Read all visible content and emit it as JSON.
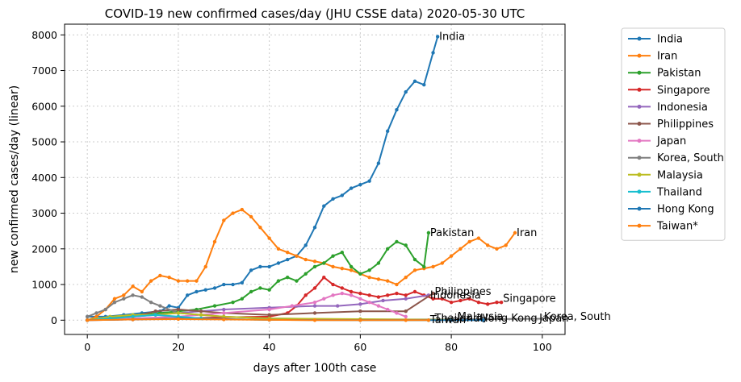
{
  "chart_data": {
    "type": "line",
    "title": "COVID-19 new confirmed cases/day (JHU CSSE data) 2020-05-30 UTC",
    "xlabel": "days after 100th case",
    "ylabel": "new confirmed cases/day (linear)",
    "xlim": [
      -5,
      105
    ],
    "ylim": [
      -400,
      8300
    ],
    "xticks": [
      0,
      20,
      40,
      60,
      80,
      100
    ],
    "yticks": [
      0,
      1000,
      2000,
      3000,
      4000,
      5000,
      6000,
      7000,
      8000
    ],
    "grid": true,
    "legend_position": "outside-right",
    "series": [
      {
        "name": "India",
        "color": "#1f77b4",
        "x": [
          0,
          4,
          8,
          12,
          16,
          18,
          20,
          22,
          24,
          26,
          28,
          30,
          32,
          34,
          36,
          38,
          40,
          42,
          44,
          46,
          48,
          50,
          52,
          54,
          56,
          58,
          60,
          62,
          64,
          66,
          68,
          70,
          72,
          74,
          76,
          77
        ],
        "y": [
          100,
          100,
          150,
          200,
          250,
          400,
          350,
          700,
          800,
          850,
          900,
          1000,
          1000,
          1050,
          1400,
          1500,
          1500,
          1600,
          1700,
          1800,
          2100,
          2600,
          3200,
          3400,
          3500,
          3700,
          3800,
          3900,
          4400,
          5300,
          5900,
          6400,
          6700,
          6600,
          7500,
          7950
        ]
      },
      {
        "name": "Iran",
        "color": "#ff7f0e",
        "x": [
          0,
          2,
          4,
          6,
          8,
          10,
          12,
          14,
          16,
          18,
          20,
          22,
          24,
          26,
          28,
          30,
          32,
          34,
          36,
          38,
          40,
          42,
          44,
          46,
          48,
          50,
          52,
          54,
          56,
          58,
          60,
          62,
          64,
          66,
          68,
          70,
          72,
          74,
          76,
          78,
          80,
          82,
          84,
          86,
          88,
          90,
          92,
          94
        ],
        "y": [
          0,
          100,
          300,
          600,
          700,
          950,
          800,
          1100,
          1250,
          1200,
          1100,
          1100,
          1100,
          1500,
          2200,
          2800,
          3000,
          3100,
          2900,
          2600,
          2300,
          2000,
          1900,
          1800,
          1700,
          1650,
          1600,
          1500,
          1450,
          1400,
          1300,
          1200,
          1150,
          1100,
          1000,
          1200,
          1400,
          1450,
          1500,
          1600,
          1800,
          2000,
          2200,
          2300,
          2100,
          2000,
          2100,
          2450
        ]
      },
      {
        "name": "Pakistan",
        "color": "#2ca02c",
        "x": [
          0,
          4,
          8,
          12,
          16,
          20,
          24,
          28,
          32,
          34,
          36,
          38,
          40,
          42,
          44,
          46,
          48,
          50,
          52,
          54,
          56,
          58,
          60,
          62,
          64,
          66,
          68,
          70,
          72,
          74,
          75
        ],
        "y": [
          0,
          50,
          100,
          150,
          200,
          250,
          300,
          400,
          500,
          600,
          800,
          900,
          850,
          1100,
          1200,
          1100,
          1300,
          1500,
          1600,
          1800,
          1900,
          1500,
          1300,
          1400,
          1600,
          2000,
          2200,
          2100,
          1700,
          1500,
          2450
        ]
      },
      {
        "name": "Singapore",
        "color": "#d62728",
        "x": [
          0,
          10,
          20,
          30,
          40,
          44,
          46,
          48,
          50,
          52,
          54,
          56,
          58,
          60,
          62,
          64,
          66,
          68,
          70,
          72,
          74,
          76,
          78,
          80,
          82,
          84,
          86,
          88,
          90,
          91
        ],
        "y": [
          0,
          20,
          50,
          80,
          100,
          200,
          400,
          700,
          900,
          1200,
          1000,
          900,
          800,
          750,
          700,
          650,
          700,
          750,
          700,
          800,
          700,
          600,
          600,
          500,
          550,
          600,
          500,
          450,
          500,
          500
        ]
      },
      {
        "name": "Indonesia",
        "color": "#9467bd",
        "x": [
          0,
          10,
          20,
          30,
          40,
          50,
          55,
          60,
          65,
          70,
          75
        ],
        "y": [
          0,
          100,
          200,
          300,
          350,
          400,
          400,
          450,
          550,
          600,
          700
        ]
      },
      {
        "name": "Philippines",
        "color": "#8c564b",
        "x": [
          0,
          10,
          15,
          20,
          25,
          30,
          40,
          50,
          60,
          70,
          76
        ],
        "y": [
          0,
          100,
          250,
          300,
          250,
          200,
          150,
          200,
          250,
          250,
          750
        ]
      },
      {
        "name": "Japan",
        "color": "#e377c2",
        "x": [
          0,
          10,
          20,
          30,
          40,
          45,
          50,
          52,
          54,
          56,
          58,
          60,
          62,
          64,
          66,
          68,
          70
        ],
        "y": [
          0,
          50,
          100,
          200,
          300,
          400,
          500,
          600,
          700,
          750,
          700,
          600,
          500,
          400,
          300,
          200,
          100
        ]
      },
      {
        "name": "Korea, South",
        "color": "#7f7f7f",
        "x": [
          0,
          2,
          4,
          6,
          8,
          10,
          12,
          14,
          16,
          20,
          30,
          40,
          60,
          80,
          100
        ],
        "y": [
          100,
          200,
          300,
          500,
          600,
          700,
          650,
          500,
          400,
          200,
          100,
          50,
          20,
          20,
          40
        ]
      },
      {
        "name": "Malaysia",
        "color": "#bcbd22",
        "x": [
          0,
          5,
          10,
          15,
          20,
          25,
          30,
          40,
          60,
          80
        ],
        "y": [
          0,
          100,
          150,
          150,
          200,
          150,
          100,
          50,
          30,
          10
        ]
      },
      {
        "name": "Thailand",
        "color": "#17becf",
        "x": [
          0,
          5,
          10,
          15,
          20,
          25,
          30,
          40,
          60,
          75
        ],
        "y": [
          0,
          50,
          100,
          150,
          100,
          50,
          30,
          10,
          5,
          0
        ]
      },
      {
        "name": "Hong Kong",
        "color": "#1f77b4",
        "x": [
          0,
          10,
          20,
          30,
          40,
          60,
          80,
          87
        ],
        "y": [
          0,
          20,
          40,
          30,
          10,
          0,
          0,
          0
        ]
      },
      {
        "name": "Taiwan*",
        "color": "#ff7f0e",
        "x": [
          0,
          10,
          20,
          30,
          40,
          50,
          60,
          70,
          75
        ],
        "y": [
          0,
          20,
          30,
          20,
          10,
          0,
          0,
          0,
          0
        ]
      }
    ],
    "end_labels": [
      {
        "text": "India",
        "x": 77,
        "y": 7950
      },
      {
        "text": "Iran",
        "x": 94,
        "y": 2450
      },
      {
        "text": "Pakistan",
        "x": 75,
        "y": 2450
      },
      {
        "text": "Singapore",
        "x": 91,
        "y": 600
      },
      {
        "text": "Indonesia",
        "x": 75,
        "y": 700
      },
      {
        "text": "Philippines",
        "x": 76,
        "y": 800
      },
      {
        "text": "Korea, South",
        "x": 100,
        "y": 100
      },
      {
        "text": "Malaysia",
        "x": 81,
        "y": 100
      },
      {
        "text": "Thailand",
        "x": 76,
        "y": 50
      },
      {
        "text": "Hong Kong",
        "x": 86,
        "y": 50
      },
      {
        "text": "Taiwan*",
        "x": 75,
        "y": 10
      },
      {
        "text": "Japan",
        "x": 99,
        "y": 50
      }
    ]
  }
}
